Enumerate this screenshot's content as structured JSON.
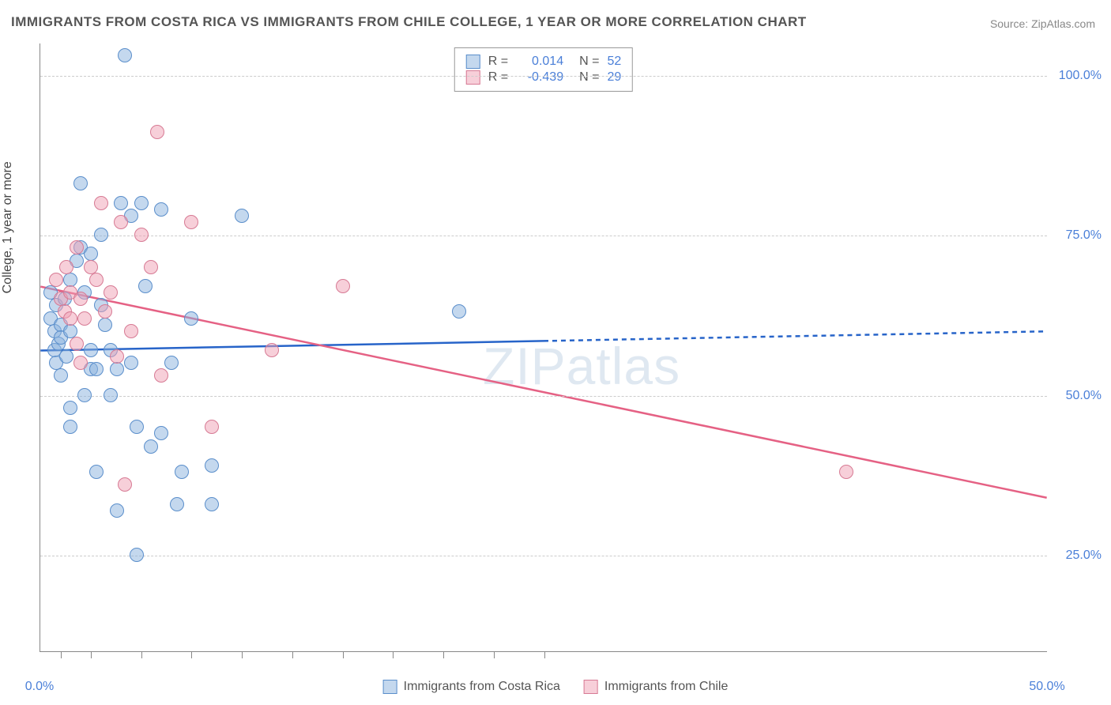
{
  "title": "IMMIGRANTS FROM COSTA RICA VS IMMIGRANTS FROM CHILE COLLEGE, 1 YEAR OR MORE CORRELATION CHART",
  "source": "Source: ZipAtlas.com",
  "ylabel": "College, 1 year or more",
  "watermark": "ZIPatlas",
  "chart": {
    "type": "scatter",
    "xlim": [
      0,
      50
    ],
    "ylim": [
      10,
      105
    ],
    "y_ticks": [
      25,
      50,
      75,
      100
    ],
    "y_tick_labels": [
      "25.0%",
      "50.0%",
      "75.0%",
      "100.0%"
    ],
    "x_ticks": [
      0,
      50
    ],
    "x_tick_labels": [
      "0.0%",
      "50.0%"
    ],
    "x_minor_ticks": [
      1,
      2.5,
      5,
      7.5,
      10,
      12.5,
      15,
      17.5,
      20,
      22.5,
      25
    ],
    "background_color": "#ffffff",
    "grid_color": "#cccccc",
    "axis_color": "#888888",
    "series": [
      {
        "name": "Immigrants from Costa Rica",
        "marker_fill": "rgba(137, 178, 222, 0.5)",
        "marker_stroke": "#5a8ecb",
        "line_color": "#2764c9",
        "r_value": "0.014",
        "n_value": "52",
        "trend": {
          "x1": 0,
          "y1": 57,
          "x2": 25,
          "y2": 58.5,
          "x2_ext": 50,
          "y2_ext": 60
        },
        "points": [
          [
            0.5,
            66
          ],
          [
            0.5,
            62
          ],
          [
            0.7,
            60
          ],
          [
            0.7,
            57
          ],
          [
            0.8,
            55
          ],
          [
            0.8,
            64
          ],
          [
            0.9,
            58
          ],
          [
            1.0,
            61
          ],
          [
            1.0,
            59
          ],
          [
            1.0,
            53
          ],
          [
            1.2,
            65
          ],
          [
            1.3,
            56
          ],
          [
            1.5,
            68
          ],
          [
            1.5,
            60
          ],
          [
            1.5,
            48
          ],
          [
            1.5,
            45
          ],
          [
            1.8,
            71
          ],
          [
            2.0,
            83
          ],
          [
            2.0,
            73
          ],
          [
            2.2,
            66
          ],
          [
            2.2,
            50
          ],
          [
            2.5,
            72
          ],
          [
            2.5,
            57
          ],
          [
            2.5,
            54
          ],
          [
            2.8,
            54
          ],
          [
            2.8,
            38
          ],
          [
            3.0,
            75
          ],
          [
            3.0,
            64
          ],
          [
            3.2,
            61
          ],
          [
            3.5,
            57
          ],
          [
            3.5,
            50
          ],
          [
            3.8,
            54
          ],
          [
            3.8,
            32
          ],
          [
            4.0,
            80
          ],
          [
            4.2,
            103
          ],
          [
            4.5,
            78
          ],
          [
            4.5,
            55
          ],
          [
            4.8,
            45
          ],
          [
            4.8,
            25
          ],
          [
            5.0,
            80
          ],
          [
            5.2,
            67
          ],
          [
            5.5,
            42
          ],
          [
            6.0,
            79
          ],
          [
            6.0,
            44
          ],
          [
            6.5,
            55
          ],
          [
            6.8,
            33
          ],
          [
            7.0,
            38
          ],
          [
            7.5,
            62
          ],
          [
            8.5,
            39
          ],
          [
            8.5,
            33
          ],
          [
            10.0,
            78
          ],
          [
            20.8,
            63
          ]
        ]
      },
      {
        "name": "Immigrants from Chile",
        "marker_fill": "rgba(240, 160, 180, 0.5)",
        "marker_stroke": "#d77a94",
        "line_color": "#e56184",
        "r_value": "-0.439",
        "n_value": "29",
        "trend": {
          "x1": 0,
          "y1": 67,
          "x2": 50,
          "y2": 34
        },
        "points": [
          [
            0.8,
            68
          ],
          [
            1.0,
            65
          ],
          [
            1.2,
            63
          ],
          [
            1.3,
            70
          ],
          [
            1.5,
            66
          ],
          [
            1.5,
            62
          ],
          [
            1.8,
            73
          ],
          [
            1.8,
            58
          ],
          [
            2.0,
            65
          ],
          [
            2.0,
            55
          ],
          [
            2.2,
            62
          ],
          [
            2.5,
            70
          ],
          [
            2.8,
            68
          ],
          [
            3.0,
            80
          ],
          [
            3.2,
            63
          ],
          [
            3.5,
            66
          ],
          [
            3.8,
            56
          ],
          [
            4.0,
            77
          ],
          [
            4.2,
            36
          ],
          [
            4.5,
            60
          ],
          [
            5.0,
            75
          ],
          [
            5.5,
            70
          ],
          [
            5.8,
            91
          ],
          [
            6.0,
            53
          ],
          [
            7.5,
            77
          ],
          [
            8.5,
            45
          ],
          [
            11.5,
            57
          ],
          [
            15.0,
            67
          ],
          [
            40.0,
            38
          ]
        ]
      }
    ]
  },
  "legend_top": {
    "r_label": "R =",
    "n_label": "N ="
  }
}
